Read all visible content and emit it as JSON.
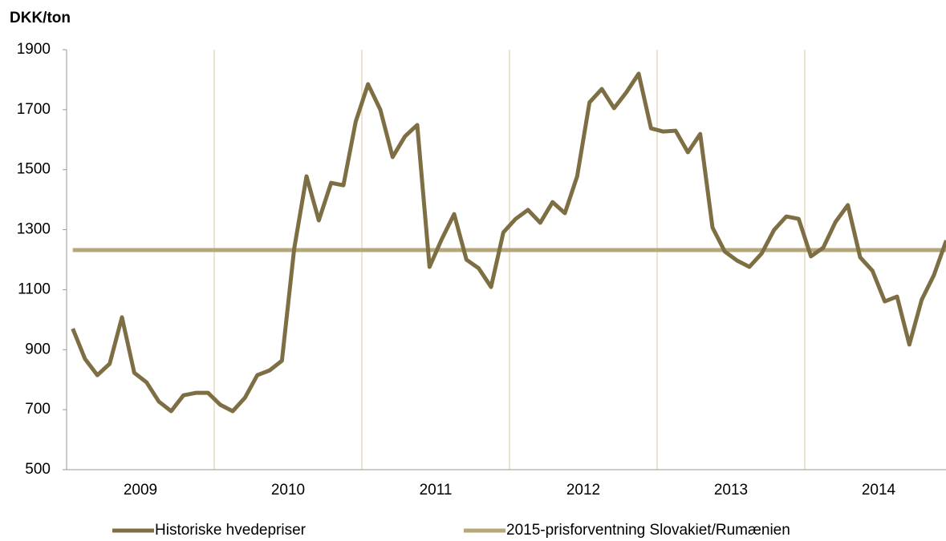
{
  "chart_data": {
    "type": "line",
    "ylabel": "DKK/ton",
    "categories": [
      null,
      null,
      null,
      null,
      null,
      null,
      "2009",
      null,
      null,
      null,
      null,
      null,
      null,
      null,
      null,
      null,
      null,
      null,
      "2010",
      null,
      null,
      null,
      null,
      null,
      null,
      null,
      null,
      null,
      null,
      null,
      "2011",
      null,
      null,
      null,
      null,
      null,
      null,
      null,
      null,
      null,
      null,
      null,
      "2012",
      null,
      null,
      null,
      null,
      null,
      null,
      null,
      null,
      null,
      null,
      null,
      "2013",
      null,
      null,
      null,
      null,
      null,
      null,
      null,
      null,
      null,
      null,
      null,
      "2014",
      null,
      null,
      null,
      null,
      null
    ],
    "series": [
      {
        "name": "Historiske hvedepriser",
        "color": "#7d6e43",
        "values": [
          970,
          869,
          815,
          853,
          1008,
          823,
          791,
          727,
          695,
          748,
          756,
          756,
          716,
          695,
          740,
          815,
          831,
          863,
          1237,
          1478,
          1331,
          1456,
          1448,
          1660,
          1785,
          1700,
          1542,
          1611,
          1649,
          1176,
          1269,
          1352,
          1200,
          1171,
          1109,
          1291,
          1336,
          1366,
          1323,
          1392,
          1355,
          1478,
          1724,
          1769,
          1705,
          1758,
          1820,
          1638,
          1627,
          1630,
          1558,
          1619,
          1307,
          1227,
          1197,
          1176,
          1221,
          1299,
          1344,
          1336,
          1211,
          1240,
          1326,
          1382,
          1208,
          1163,
          1061,
          1077,
          917,
          1066,
          1149,
          1264
        ]
      },
      {
        "name": "2015-prisforventning Slovakiet/Rumænien",
        "color": "#b5a77a",
        "values": [
          1232,
          1232,
          1232,
          1232,
          1232,
          1232,
          1232,
          1232,
          1232,
          1232,
          1232,
          1232,
          1232,
          1232,
          1232,
          1232,
          1232,
          1232,
          1232,
          1232,
          1232,
          1232,
          1232,
          1232,
          1232,
          1232,
          1232,
          1232,
          1232,
          1232,
          1232,
          1232,
          1232,
          1232,
          1232,
          1232,
          1232,
          1232,
          1232,
          1232,
          1232,
          1232,
          1232,
          1232,
          1232,
          1232,
          1232,
          1232,
          1232,
          1232,
          1232,
          1232,
          1232,
          1232,
          1232,
          1232,
          1232,
          1232,
          1232,
          1232,
          1232,
          1232,
          1232,
          1232,
          1232,
          1232,
          1232,
          1232,
          1232,
          1232,
          1232,
          1232
        ]
      }
    ],
    "ylim": [
      500,
      1900
    ],
    "yticks": [
      500,
      700,
      900,
      1100,
      1300,
      1500,
      1700,
      1900
    ]
  }
}
